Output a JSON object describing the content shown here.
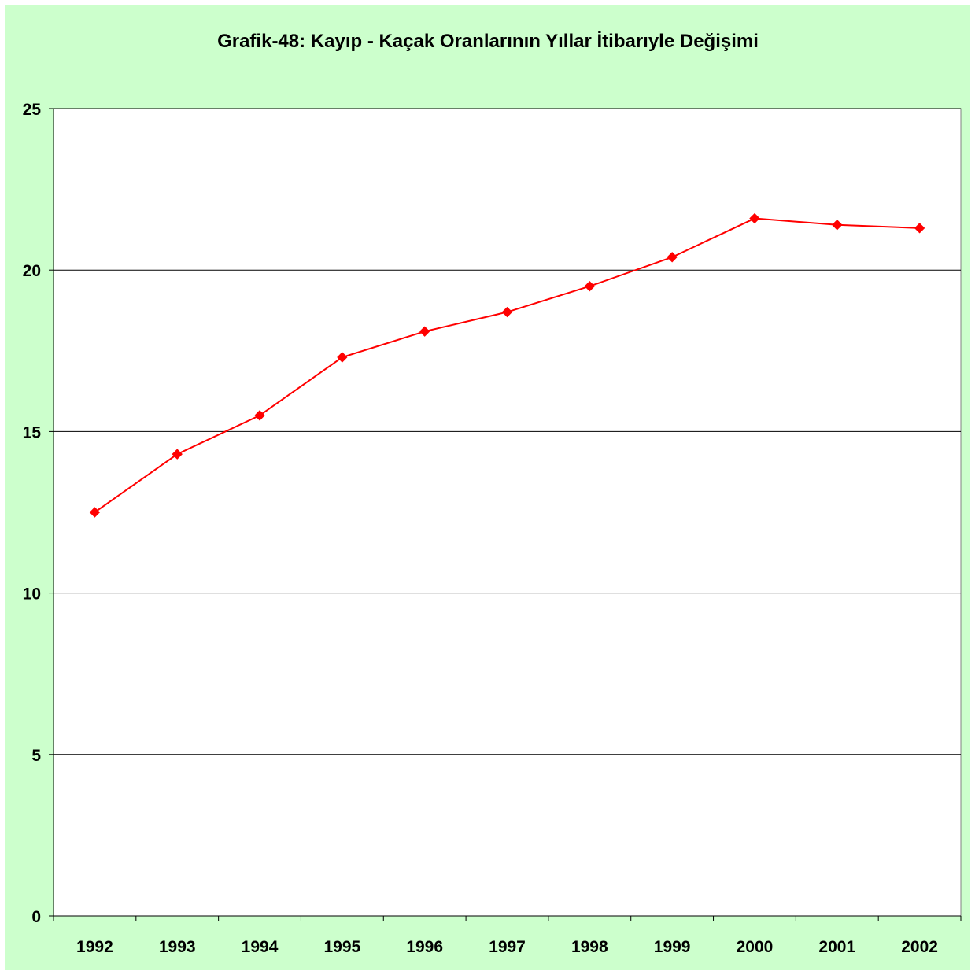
{
  "chart_data": {
    "type": "line",
    "title": "Grafik-48: Kayıp - Kaçak Oranlarının Yıllar İtibarıyle Değişimi",
    "xlabel": "",
    "ylabel": "",
    "categories": [
      "1992",
      "1993",
      "1994",
      "1995",
      "1996",
      "1997",
      "1998",
      "1999",
      "2000",
      "2001",
      "2002"
    ],
    "series": [
      {
        "values": [
          12.5,
          14.3,
          15.5,
          17.3,
          18.1,
          18.7,
          19.5,
          20.4,
          21.6,
          21.4,
          21.3
        ],
        "color": "#ff0000"
      }
    ],
    "ylim": [
      0,
      25
    ],
    "yticks": [
      "0",
      "5",
      "10",
      "15",
      "20",
      "25"
    ],
    "grid": true,
    "legend": "none",
    "background_color": "#ccffcc",
    "plot_background_color": "#ffffff"
  }
}
